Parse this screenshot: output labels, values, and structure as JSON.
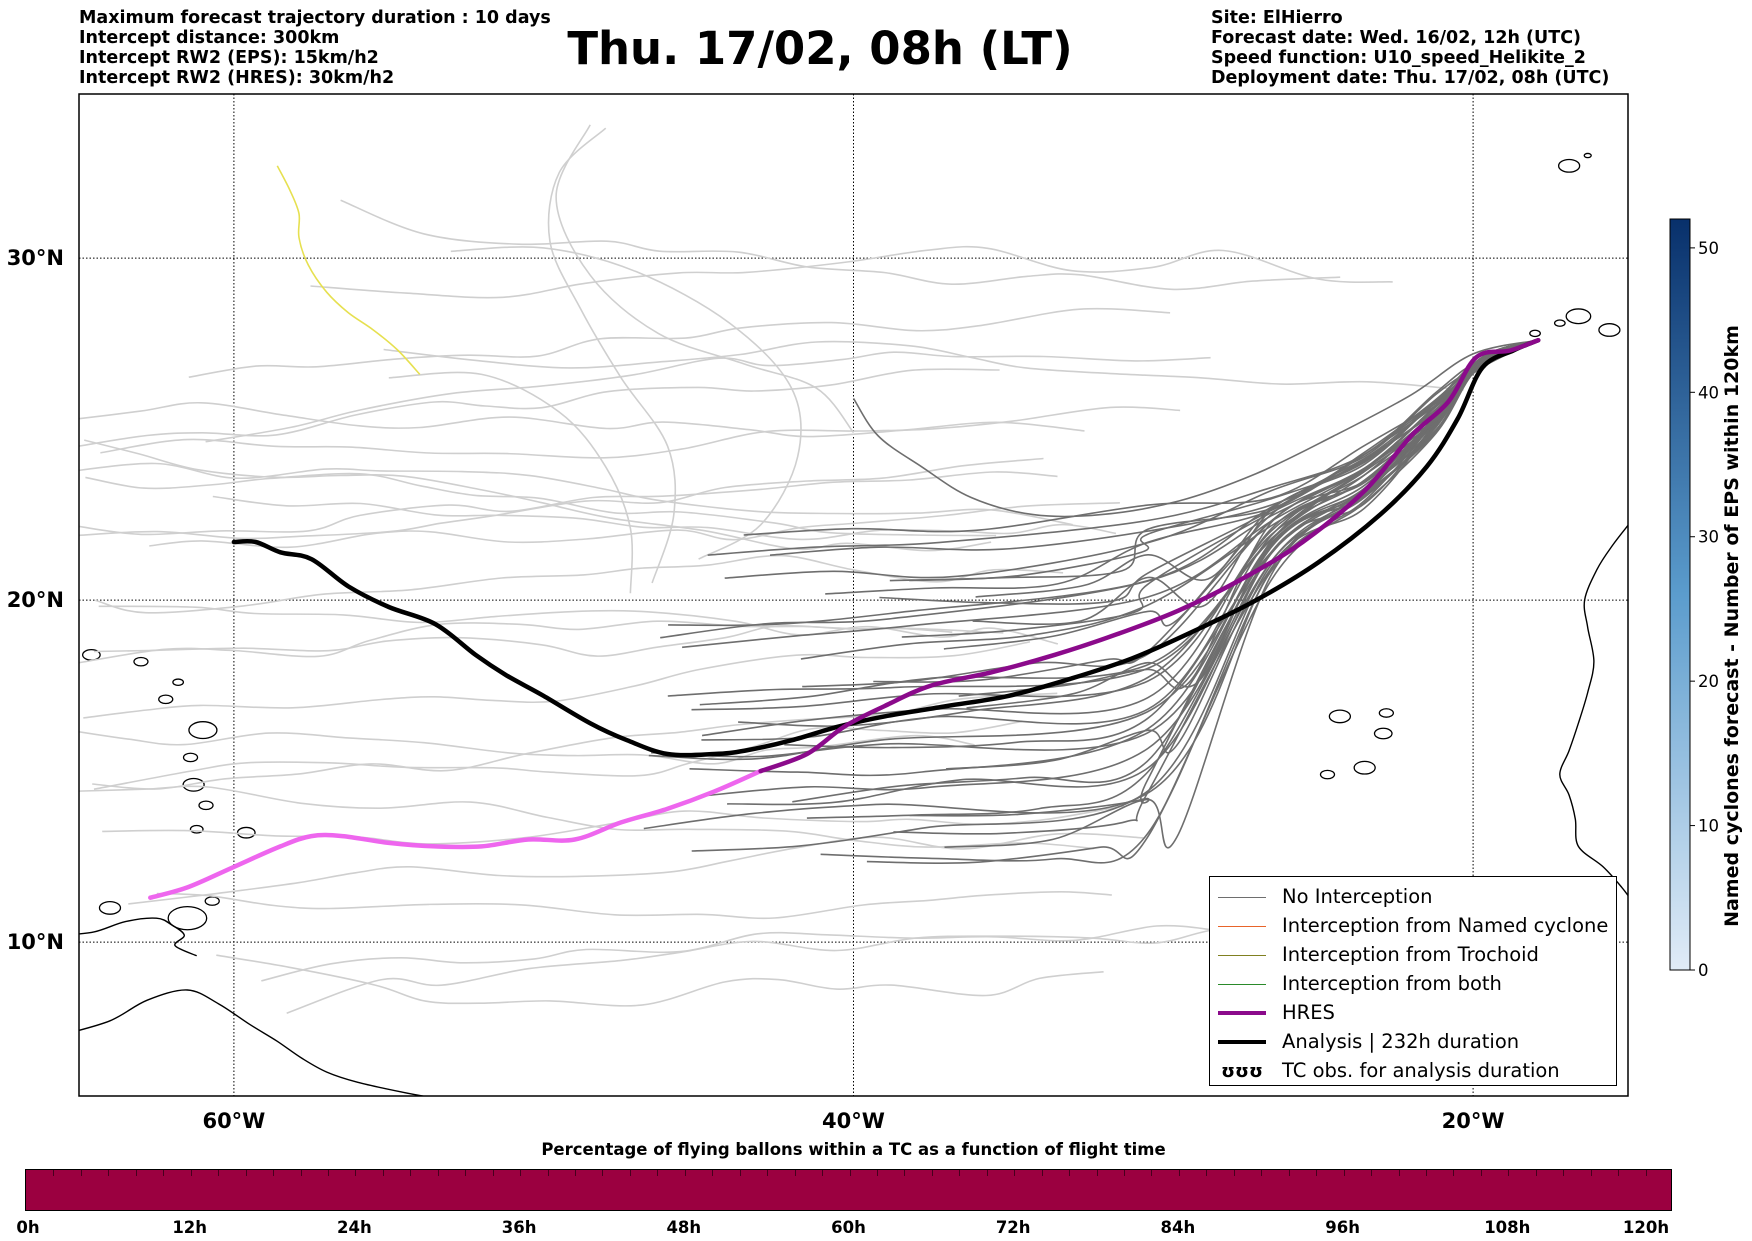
{
  "header_left": [
    "Maximum forecast trajectory duration : 10 days",
    "Intercept distance: 300km",
    "Intercept RW2 (EPS):  15km/h2",
    "Intercept RW2 (HRES): 30km/h2"
  ],
  "title": "Thu. 17/02, 08h (LT)",
  "header_right": [
    "Site: ElHierro",
    "Forecast date: Wed. 16/02, 12h (UTC)",
    "Speed function: U10_speed_Helikite_2",
    "Deployment date: Thu. 17/02, 08h (UTC)"
  ],
  "map": {
    "lon_range": [
      -65,
      -15
    ],
    "lat_range": [
      5.5,
      34.8
    ],
    "lat_ticks": [
      {
        "value": 10,
        "label": "10°N"
      },
      {
        "value": 20,
        "label": "20°N"
      },
      {
        "value": 30,
        "label": "30°N"
      }
    ],
    "lon_ticks": [
      {
        "value": -60,
        "label": "60°W"
      },
      {
        "value": -40,
        "label": "40°W"
      },
      {
        "value": -20,
        "label": "20°W"
      }
    ],
    "colors": {
      "no_interception": "#6e6e6e",
      "old_tracks": "#cfcfcf",
      "named_cyclone": "#e8642a",
      "trochoid": "#808020",
      "both": "#2a8a2a",
      "hres": "#8b0a8b",
      "hres_light": "#ee66ee",
      "analysis": "#000000",
      "yellow_track": "#e6e050",
      "coast": "#000000"
    },
    "analysis_track": [
      [
        -60,
        21.7
      ],
      [
        -59.3,
        21.7
      ],
      [
        -58.5,
        21.4
      ],
      [
        -57.5,
        21.2
      ],
      [
        -56.3,
        20.4
      ],
      [
        -55,
        19.8
      ],
      [
        -53.5,
        19.3
      ],
      [
        -52.2,
        18.4
      ],
      [
        -51.2,
        17.8
      ],
      [
        -50,
        17.2
      ],
      [
        -48.5,
        16.4
      ],
      [
        -47.3,
        15.9
      ],
      [
        -46,
        15.5
      ],
      [
        -44.5,
        15.5
      ],
      [
        -43.5,
        15.6
      ],
      [
        -42,
        15.9
      ],
      [
        -40.5,
        16.3
      ],
      [
        -39,
        16.6
      ],
      [
        -37,
        16.9
      ],
      [
        -35,
        17.2
      ],
      [
        -33,
        17.7
      ],
      [
        -31,
        18.3
      ],
      [
        -29,
        19.1
      ],
      [
        -27,
        20.0
      ],
      [
        -25,
        21.1
      ],
      [
        -23,
        22.5
      ],
      [
        -21.5,
        23.9
      ],
      [
        -20.5,
        25.3
      ],
      [
        -19.7,
        26.8
      ],
      [
        -18.7,
        27.3
      ],
      [
        -17.9,
        27.6
      ]
    ],
    "hres_track": [
      [
        -62.7,
        11.3
      ],
      [
        -61.5,
        11.6
      ],
      [
        -60,
        12.2
      ],
      [
        -58.5,
        12.8
      ],
      [
        -57.5,
        13.1
      ],
      [
        -56.5,
        13.1
      ],
      [
        -55,
        12.9
      ],
      [
        -53.5,
        12.8
      ],
      [
        -52,
        12.8
      ],
      [
        -50.5,
        13.0
      ],
      [
        -49,
        13.0
      ],
      [
        -47.5,
        13.5
      ],
      [
        -46,
        13.9
      ],
      [
        -44.5,
        14.4
      ],
      [
        -43,
        15.0
      ],
      [
        -41.5,
        15.5
      ],
      [
        -40.3,
        16.3
      ],
      [
        -39,
        16.9
      ],
      [
        -37.5,
        17.5
      ],
      [
        -35.5,
        17.9
      ],
      [
        -33.5,
        18.4
      ],
      [
        -31.5,
        19.0
      ],
      [
        -29.5,
        19.7
      ],
      [
        -27.5,
        20.6
      ],
      [
        -25.5,
        21.7
      ],
      [
        -23.5,
        23.2
      ],
      [
        -22,
        24.8
      ],
      [
        -20.8,
        25.8
      ],
      [
        -19.9,
        27.1
      ],
      [
        -18.8,
        27.3
      ],
      [
        -17.9,
        27.6
      ]
    ],
    "yellow_track": [
      [
        -58.6,
        32.7
      ],
      [
        -58.2,
        32.0
      ],
      [
        -57.9,
        31.3
      ],
      [
        -57.9,
        30.6
      ],
      [
        -57.6,
        29.8
      ],
      [
        -57.0,
        29.0
      ],
      [
        -56.3,
        28.4
      ],
      [
        -55.5,
        27.9
      ],
      [
        -54.7,
        27.3
      ],
      [
        -54.0,
        26.6
      ]
    ]
  },
  "legend": [
    {
      "label": "No Interception",
      "style": "no_interception"
    },
    {
      "label": "Interception from Named cyclone",
      "style": "named_cyclone"
    },
    {
      "label": "Interception from Trochoid",
      "style": "trochoid"
    },
    {
      "label": "Interception from both",
      "style": "both"
    },
    {
      "label": "HRES",
      "style": "hres"
    },
    {
      "label": "Analysis | 232h duration",
      "style": "analysis"
    },
    {
      "label": "TC obs. for analysis duration",
      "style": "tc_obs",
      "symbol": "ʊʊʊ"
    }
  ],
  "colorbar": {
    "label": "Named cyclones forecast - Number of EPS within 120km",
    "ticks": [
      "0",
      "10",
      "20",
      "30",
      "40",
      "50"
    ],
    "range": [
      0,
      52
    ],
    "color_low": "#e1ecf7",
    "color_high": "#08306b"
  },
  "percentage_bar": {
    "label": "Percentage of flying ballons within a TC as a function of flight time",
    "color": "#9b0040",
    "ticks": [
      "0h",
      "12h",
      "24h",
      "36h",
      "48h",
      "60h",
      "72h",
      "84h",
      "96h",
      "108h",
      "120h"
    ]
  }
}
